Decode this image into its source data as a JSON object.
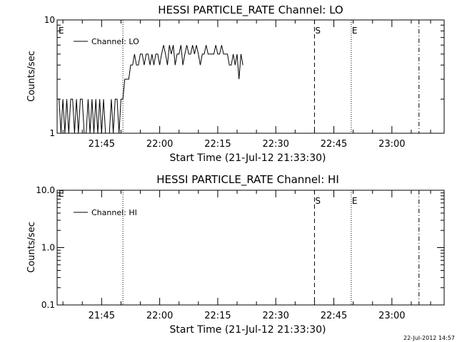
{
  "footer_timestamp": "22-Jul-2012 14:57",
  "chart_data": [
    {
      "type": "line",
      "title": "HESSI PARTICLE_RATE Channel: LO",
      "xlabel": "Start Time (21-Jul-12 21:33:30)",
      "ylabel": "Counts/sec",
      "yscale": "log",
      "x_unit": "minutes since 21:33:30",
      "xlim": [
        0,
        100
      ],
      "ylim": [
        1,
        10
      ],
      "x_ticks": [
        {
          "x": 11.5,
          "label": "21:45"
        },
        {
          "x": 26.5,
          "label": "22:00"
        },
        {
          "x": 41.5,
          "label": "22:15"
        },
        {
          "x": 56.5,
          "label": "22:30"
        },
        {
          "x": 71.5,
          "label": "22:45"
        },
        {
          "x": 86.5,
          "label": "23:00"
        }
      ],
      "y_ticks": [
        {
          "y": 1,
          "label": "1"
        },
        {
          "y": 10,
          "label": "10"
        }
      ],
      "grid": false,
      "legend": {
        "position": "top-left",
        "entries": [
          "Channel: LO"
        ]
      },
      "vlines": [
        {
          "x": 17.0,
          "style": "dotted",
          "label": ""
        },
        {
          "x": 66.5,
          "style": "dashed",
          "label": "S"
        },
        {
          "x": 76.0,
          "style": "dotted",
          "label": "E"
        },
        {
          "x": 93.5,
          "style": "dashdot",
          "label": ""
        }
      ],
      "edge_label": "E",
      "series": [
        {
          "name": "Channel: LO",
          "x": [
            0,
            0.5,
            1,
            1.5,
            2,
            2.5,
            3,
            3.5,
            4,
            4.5,
            5,
            5.5,
            6,
            6.5,
            7,
            7.5,
            8,
            8.5,
            9,
            9.5,
            10,
            10.5,
            11,
            11.5,
            12,
            12.5,
            13,
            13.5,
            14,
            14.5,
            15,
            15.5,
            16,
            16.5,
            17,
            17.5,
            18,
            18.5,
            19,
            19.5,
            20,
            20.5,
            21,
            21.5,
            22,
            22.5,
            23,
            23.5,
            24,
            24.5,
            25,
            25.5,
            26,
            26.5,
            27,
            27.5,
            28,
            28.5,
            29,
            29.5,
            30,
            30.5,
            31,
            31.5,
            32,
            32.5,
            33,
            33.5,
            34,
            34.5,
            35,
            35.5,
            36,
            36.5,
            37,
            37.5,
            38,
            38.5,
            39,
            39.5,
            40,
            40.5,
            41,
            41.5,
            42,
            42.5,
            43,
            43.5,
            44,
            44.5,
            45,
            45.5,
            46,
            46.5,
            47,
            47.5,
            48
          ],
          "y": [
            2,
            2,
            1,
            2,
            1,
            2,
            1,
            2,
            2,
            1,
            2,
            1,
            2,
            2,
            1,
            1,
            2,
            1,
            2,
            1,
            2,
            1,
            2,
            1,
            2,
            1,
            1,
            1,
            2,
            1,
            2,
            2,
            1,
            2,
            2,
            3,
            3,
            3,
            4,
            4,
            5,
            4,
            4,
            5,
            5,
            4,
            5,
            5,
            4,
            5,
            4,
            5,
            5,
            4,
            5,
            6,
            5,
            4,
            6,
            5,
            6,
            4,
            5,
            5,
            6,
            4,
            5,
            6,
            5,
            5,
            6,
            5,
            6,
            5,
            4,
            5,
            5,
            6,
            5,
            5,
            5,
            5,
            6,
            5,
            5,
            6,
            5,
            5,
            5,
            4,
            4,
            5,
            4,
            5,
            3,
            5,
            4
          ]
        }
      ]
    },
    {
      "type": "line",
      "title": "HESSI PARTICLE_RATE Channel: HI",
      "xlabel": "Start Time (21-Jul-12 21:33:30)",
      "ylabel": "Counts/sec",
      "yscale": "log",
      "x_unit": "minutes since 21:33:30",
      "xlim": [
        0,
        100
      ],
      "ylim": [
        0.1,
        10
      ],
      "x_ticks": [
        {
          "x": 11.5,
          "label": "21:45"
        },
        {
          "x": 26.5,
          "label": "22:00"
        },
        {
          "x": 41.5,
          "label": "22:15"
        },
        {
          "x": 56.5,
          "label": "22:30"
        },
        {
          "x": 71.5,
          "label": "22:45"
        },
        {
          "x": 86.5,
          "label": "23:00"
        }
      ],
      "y_ticks": [
        {
          "y": 0.1,
          "label": "0.1"
        },
        {
          "y": 1,
          "label": "1.0"
        },
        {
          "y": 10,
          "label": "10.0"
        }
      ],
      "grid": false,
      "legend": {
        "position": "top-left",
        "entries": [
          "Channel: HI"
        ]
      },
      "vlines": [
        {
          "x": 17.0,
          "style": "dotted",
          "label": ""
        },
        {
          "x": 66.5,
          "style": "dashed",
          "label": "S"
        },
        {
          "x": 76.0,
          "style": "dotted",
          "label": "E"
        },
        {
          "x": 93.5,
          "style": "dashdot",
          "label": ""
        }
      ],
      "edge_label": "E",
      "series": [
        {
          "name": "Channel: HI",
          "x": [],
          "y": []
        }
      ]
    }
  ]
}
